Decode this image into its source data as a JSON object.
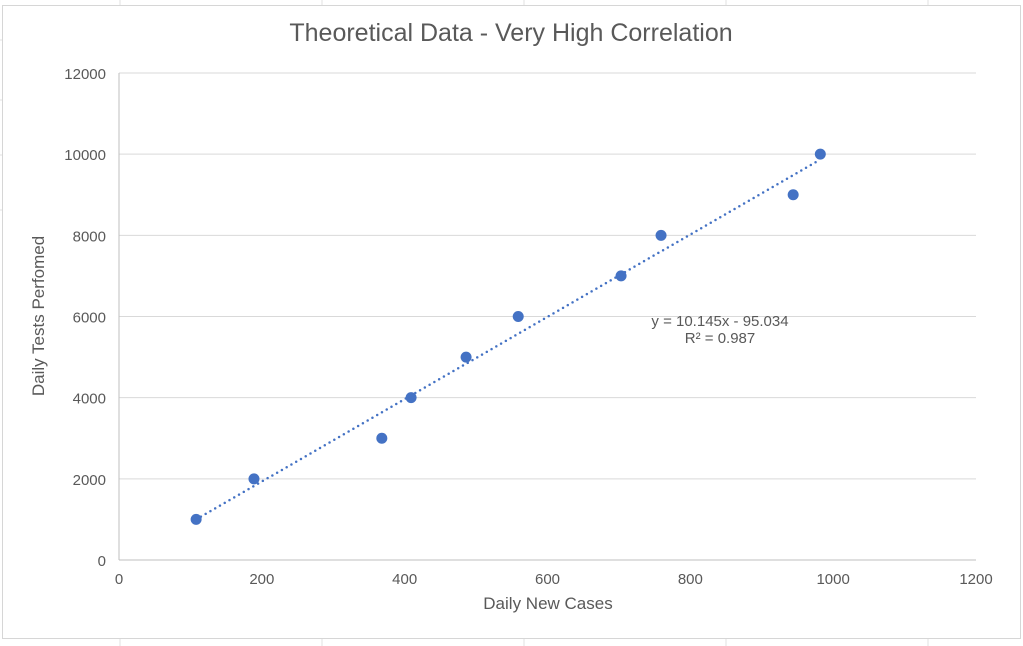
{
  "chart_data": {
    "type": "scatter",
    "title": "Theoretical Data - Very High Correlation",
    "xlabel": "Daily New Cases",
    "ylabel": "Daily Tests Perfomed",
    "xlim": [
      0,
      1200
    ],
    "ylim": [
      0,
      12000
    ],
    "xticks": [
      0,
      200,
      400,
      600,
      800,
      1000,
      1200
    ],
    "yticks": [
      0,
      2000,
      4000,
      6000,
      8000,
      10000,
      12000
    ],
    "grid": "horizontal",
    "series": [
      {
        "name": "Daily Tests Perfomed",
        "color": "#4472C4",
        "x": [
          108,
          189,
          368,
          409,
          486,
          559,
          703,
          759,
          944,
          982
        ],
        "y": [
          1000,
          2000,
          3000,
          4000,
          5000,
          6000,
          7000,
          8000,
          9000,
          10000
        ]
      }
    ],
    "trendline": {
      "type": "linear",
      "style": "dotted",
      "slope": 10.145,
      "intercept": -95.034,
      "equation_label": "y = 10.145x - 95.034",
      "r2_label": "R² = 0.987"
    }
  }
}
